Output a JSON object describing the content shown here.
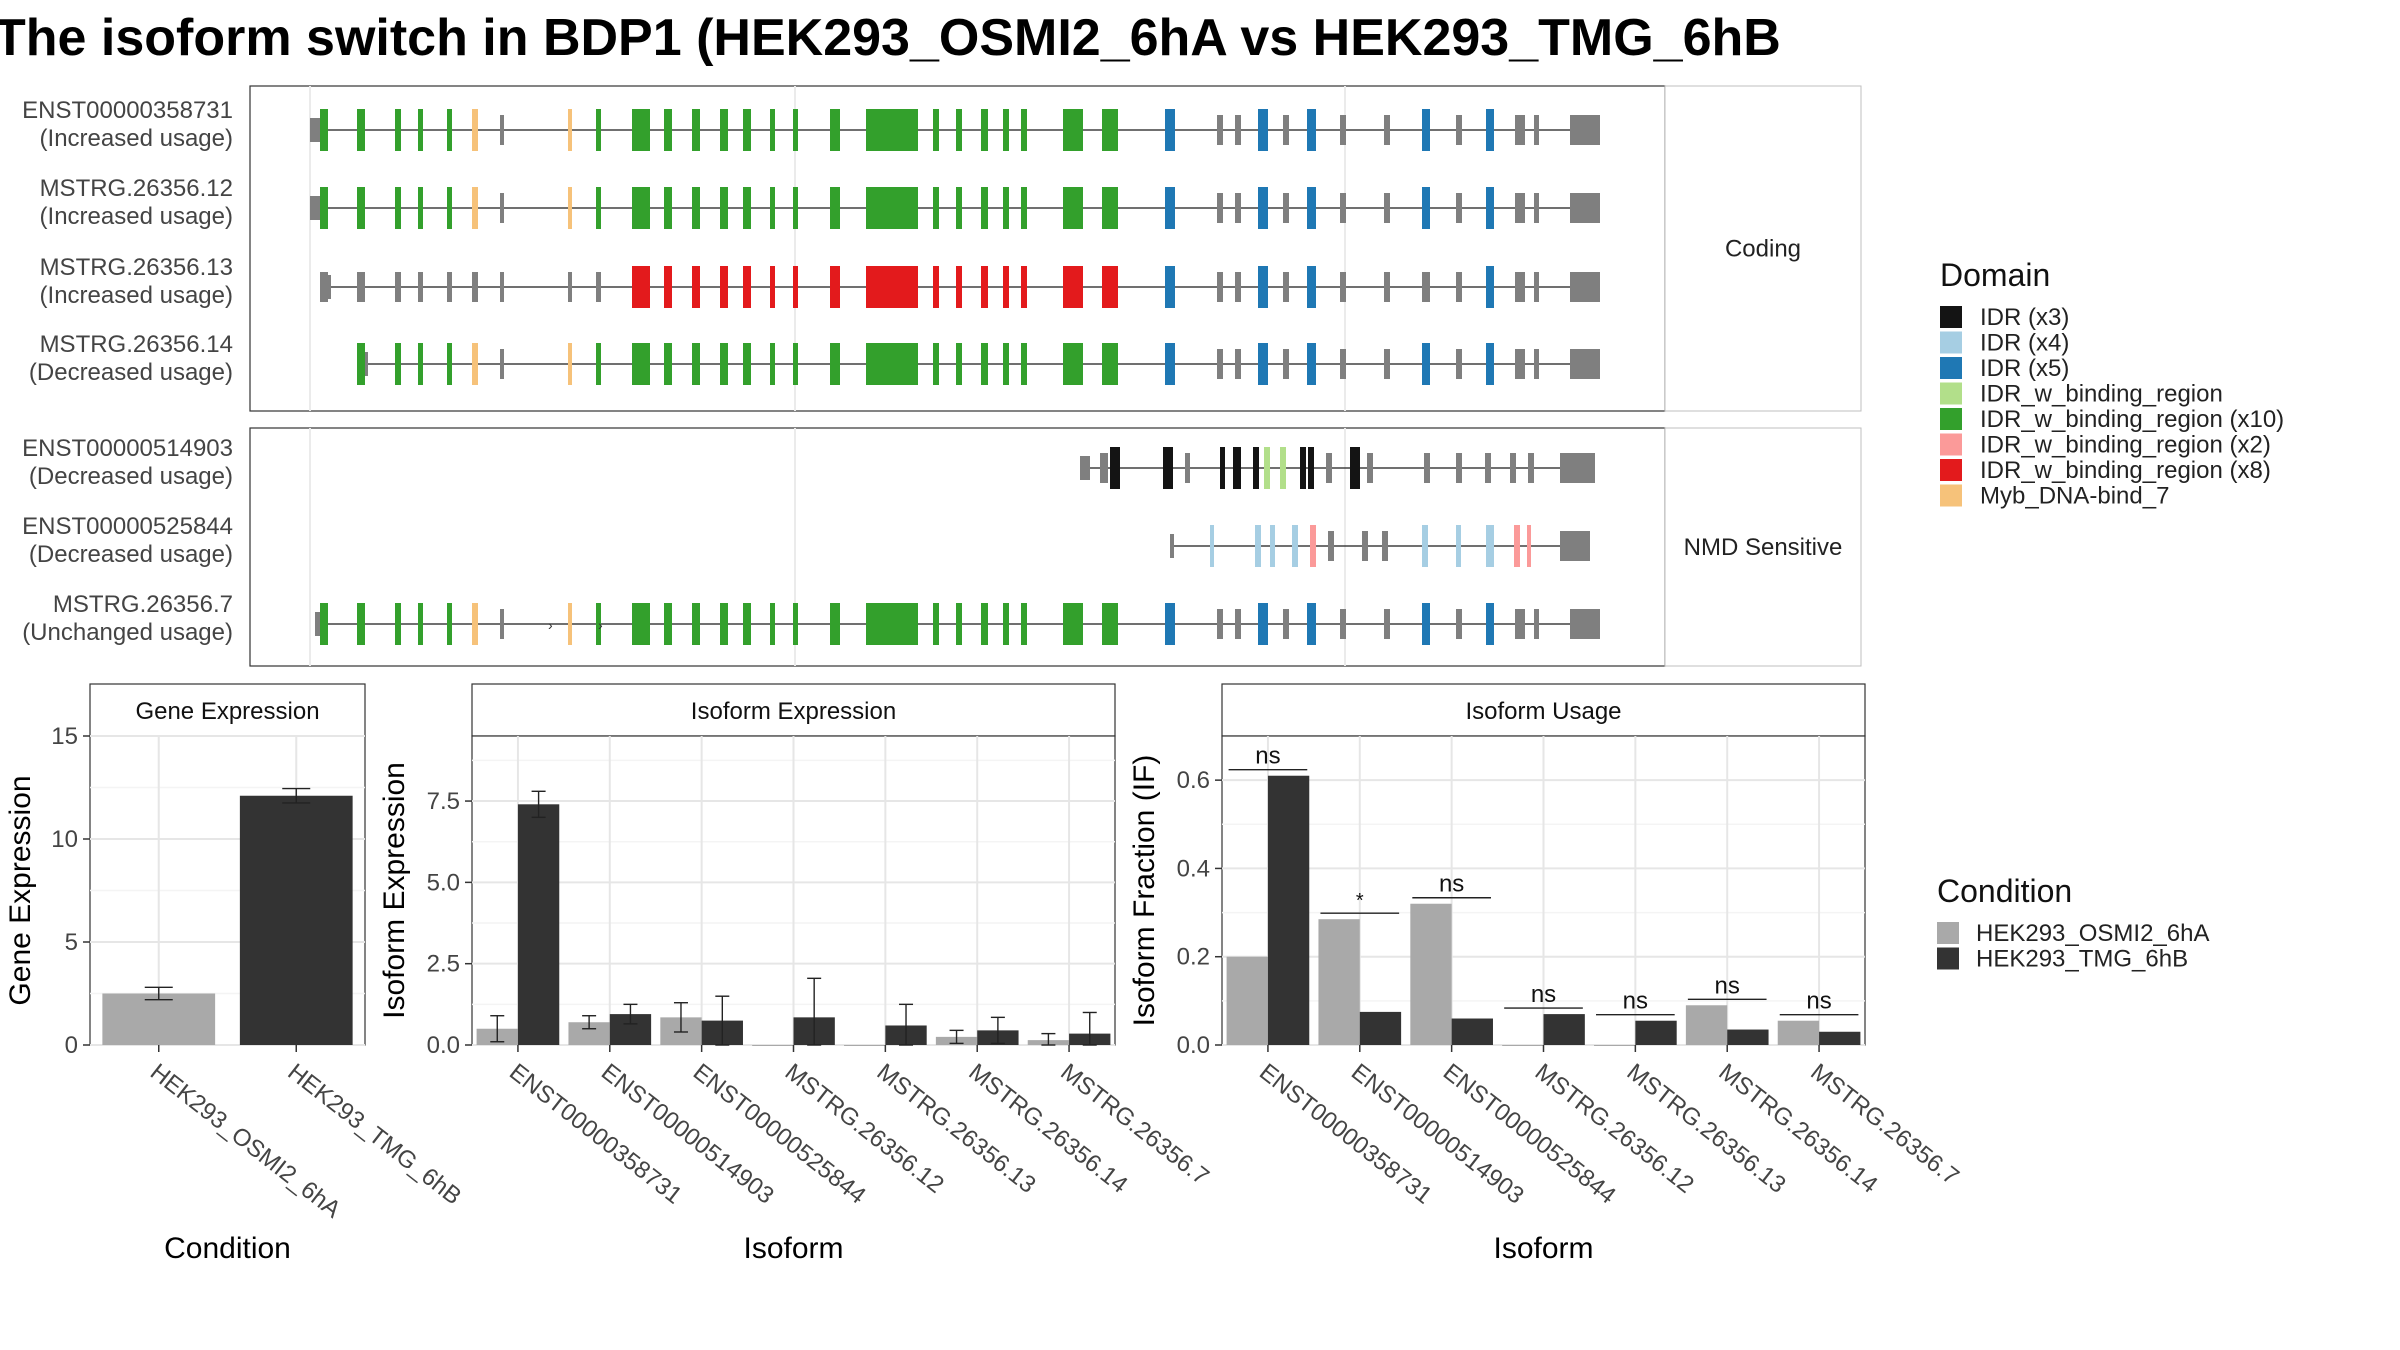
{
  "title": "The isoform switch in BDP1 (HEK293_OSMI2_6hA vs HEK293_TMG_6hB",
  "domain_legend": {
    "title": "Domain",
    "items": [
      {
        "label": "IDR (x3)",
        "color": "#141414"
      },
      {
        "label": "IDR (x4)",
        "color": "#a6cee3"
      },
      {
        "label": "IDR (x5)",
        "color": "#1f78b4"
      },
      {
        "label": "IDR_w_binding_region",
        "color": "#b2df8a"
      },
      {
        "label": "IDR_w_binding_region (x10)",
        "color": "#33a02c"
      },
      {
        "label": "IDR_w_binding_region (x2)",
        "color": "#fb9a99"
      },
      {
        "label": "IDR_w_binding_region (x8)",
        "color": "#e31a1c"
      },
      {
        "label": "Myb_DNA-bind_7",
        "color": "#f6c27a"
      }
    ]
  },
  "condition_legend": {
    "title": "Condition",
    "items": [
      {
        "label": "HEK293_OSMI2_6hA",
        "color": "#a9a9a9"
      },
      {
        "label": "HEK293_TMG_6hB",
        "color": "#333333"
      }
    ]
  },
  "structure_panels": [
    {
      "label": "Coding",
      "isoforms": [
        {
          "id": "ENST00000358731",
          "usage": "(Increased usage)",
          "scheme": "green"
        },
        {
          "id": "MSTRG.26356.12",
          "usage": "(Increased usage)",
          "scheme": "green"
        },
        {
          "id": "MSTRG.26356.13",
          "usage": "(Increased usage)",
          "scheme": "red"
        },
        {
          "id": "MSTRG.26356.14",
          "usage": "(Decreased usage)",
          "scheme": "green_short"
        }
      ]
    },
    {
      "label": "NMD Sensitive",
      "isoforms": [
        {
          "id": "ENST00000514903",
          "usage": "(Decreased usage)",
          "scheme": "black"
        },
        {
          "id": "ENST00000525844",
          "usage": "(Decreased usage)",
          "scheme": "light"
        },
        {
          "id": "MSTRG.26356.7",
          "usage": "(Unchanged usage)",
          "scheme": "green_nmd"
        }
      ]
    }
  ],
  "chart_data": [
    {
      "type": "bar",
      "title": "Gene Expression",
      "xlabel": "Condition",
      "ylabel": "Gene Expression",
      "ylim": [
        0,
        15
      ],
      "yticks": [
        0,
        5,
        10,
        15
      ],
      "categories": [
        "HEK293_OSMI2_6hA",
        "HEK293_TMG_6hB"
      ],
      "values": [
        2.5,
        12.1
      ],
      "errors": [
        0.3,
        0.35
      ]
    },
    {
      "type": "bar",
      "title": "Isoform Expression",
      "xlabel": "Isoform",
      "ylabel": "Isoform Expression",
      "ylim": [
        0,
        9.5
      ],
      "yticks": [
        0.0,
        2.5,
        5.0,
        7.5
      ],
      "tick_labels": [
        "0.0",
        "2.5",
        "5.0",
        "7.5"
      ],
      "categories": [
        "ENST00000358731",
        "ENST00000514903",
        "ENST00000525844",
        "MSTRG.26356.12",
        "MSTRG.26356.13",
        "MSTRG.26356.14",
        "MSTRG.26356.7"
      ],
      "series": [
        {
          "name": "HEK293_OSMI2_6hA",
          "values": [
            0.5,
            0.7,
            0.85,
            0.0,
            0.0,
            0.25,
            0.15
          ],
          "errors": [
            0.4,
            0.2,
            0.45,
            0.0,
            0.0,
            0.2,
            0.2
          ]
        },
        {
          "name": "HEK293_TMG_6hB",
          "values": [
            7.4,
            0.95,
            0.75,
            0.85,
            0.6,
            0.45,
            0.35
          ],
          "errors": [
            0.4,
            0.3,
            0.75,
            1.2,
            0.65,
            0.4,
            0.65
          ]
        }
      ]
    },
    {
      "type": "bar",
      "title": "Isoform Usage",
      "xlabel": "Isoform",
      "ylabel": "Isoform Fraction (IF)",
      "ylim": [
        0,
        0.7
      ],
      "yticks": [
        0.0,
        0.2,
        0.4,
        0.6
      ],
      "tick_labels": [
        "0.0",
        "0.2",
        "0.4",
        "0.6"
      ],
      "categories": [
        "ENST00000358731",
        "ENST00000514903",
        "ENST00000525844",
        "MSTRG.26356.12",
        "MSTRG.26356.13",
        "MSTRG.26356.14",
        "MSTRG.26356.7"
      ],
      "series": [
        {
          "name": "HEK293_OSMI2_6hA",
          "values": [
            0.2,
            0.285,
            0.32,
            0.0,
            0.0,
            0.09,
            0.055
          ]
        },
        {
          "name": "HEK293_TMG_6hB",
          "values": [
            0.61,
            0.075,
            0.06,
            0.07,
            0.055,
            0.035,
            0.03
          ]
        }
      ],
      "significance": [
        "ns",
        "*",
        "ns",
        "ns",
        "ns",
        "ns",
        "ns"
      ]
    }
  ]
}
